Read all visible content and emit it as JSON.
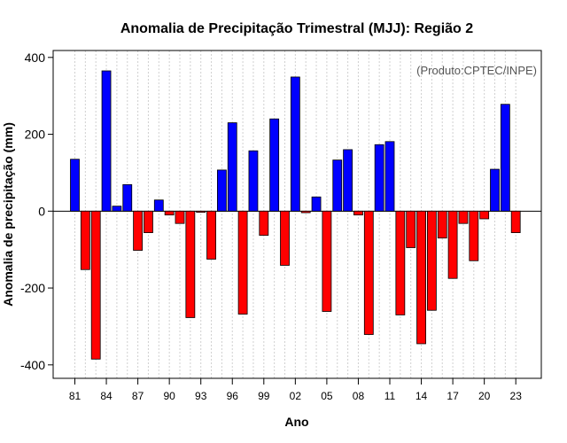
{
  "chart_data": {
    "type": "bar",
    "title": "Anomalia de Precipitação Trimestral (MJJ): Região 2",
    "xlabel": "Ano",
    "ylabel": "Anomalia de precipitação (mm)",
    "credit": "(Produto:CPTEC/INPE)",
    "ylim": [
      -435,
      418
    ],
    "y_ticks": [
      -400,
      -200,
      0,
      200,
      400
    ],
    "y_tick_labels": [
      "-400",
      "-200",
      "0",
      "200",
      "400"
    ],
    "x_tick_years": [
      1981,
      1984,
      1987,
      1990,
      1993,
      1996,
      1999,
      2002,
      2005,
      2008,
      2011,
      2014,
      2017,
      2020,
      2023
    ],
    "x_tick_labels": [
      "81",
      "84",
      "87",
      "90",
      "93",
      "96",
      "99",
      "02",
      "05",
      "08",
      "11",
      "14",
      "17",
      "20",
      "23"
    ],
    "grid": true,
    "colors": {
      "positive": "#0000ff",
      "negative": "#ff0000",
      "zero_line": "#000000",
      "grid": "#d0d0d0"
    },
    "categories": [
      1981,
      1982,
      1983,
      1984,
      1985,
      1986,
      1987,
      1988,
      1989,
      1990,
      1991,
      1992,
      1993,
      1994,
      1995,
      1996,
      1997,
      1998,
      1999,
      2000,
      2001,
      2002,
      2003,
      2004,
      2005,
      2006,
      2007,
      2008,
      2009,
      2010,
      2011,
      2012,
      2013,
      2014,
      2015,
      2016,
      2017,
      2018,
      2019,
      2020,
      2021,
      2022,
      2023
    ],
    "values": [
      135,
      -152,
      -385,
      365,
      13,
      69,
      -102,
      -56,
      29,
      -10,
      -32,
      -277,
      -3,
      -125,
      107,
      230,
      -268,
      157,
      -63,
      240,
      -141,
      349,
      -4,
      37,
      -261,
      133,
      160,
      -10,
      -321,
      173,
      181,
      -270,
      -95,
      -345,
      -258,
      -70,
      -175,
      -32,
      -129,
      -20,
      109,
      278,
      -56
    ]
  }
}
